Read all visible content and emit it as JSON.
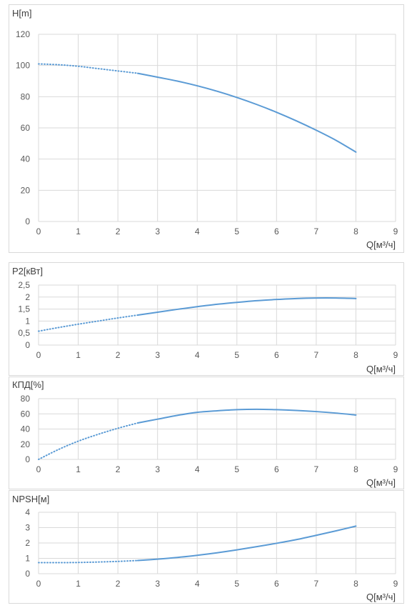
{
  "chart_data": [
    {
      "type": "line",
      "ylabel": "H[m]",
      "xlabel": "Q[м³/ч]",
      "xlim": [
        0,
        9
      ],
      "ylim": [
        0,
        120
      ],
      "xticks": [
        "0",
        "1",
        "2",
        "3",
        "4",
        "5",
        "6",
        "7",
        "8",
        "9"
      ],
      "yticks": [
        "0",
        "20",
        "40",
        "60",
        "80",
        "100",
        "120"
      ],
      "grid": true,
      "series": [
        {
          "line_style": "dotted",
          "color": "#5b9bd5",
          "x": [
            0,
            0.5,
            1,
            1.5,
            2,
            2.5
          ],
          "y": [
            101,
            100.5,
            99.5,
            98,
            96.5,
            95
          ]
        },
        {
          "line_style": "solid",
          "color": "#5b9bd5",
          "x": [
            2.5,
            3,
            3.5,
            4,
            4.5,
            5,
            5.5,
            6,
            6.5,
            7,
            7.5,
            8
          ],
          "y": [
            95,
            92.5,
            90,
            87,
            83.5,
            79.5,
            75,
            70,
            64.5,
            58.5,
            52,
            44.5
          ]
        }
      ]
    },
    {
      "type": "line",
      "ylabel": "P2[кВт]",
      "xlabel": "Q[м³/ч]",
      "xlim": [
        0,
        9
      ],
      "ylim": [
        0,
        2.5
      ],
      "xticks": [
        "0",
        "1",
        "2",
        "3",
        "4",
        "5",
        "6",
        "7",
        "8",
        "9"
      ],
      "yticks": [
        "0",
        "0,5",
        "1",
        "1,5",
        "2",
        "2,5"
      ],
      "grid": true,
      "series": [
        {
          "line_style": "dotted",
          "color": "#5b9bd5",
          "x": [
            0,
            0.5,
            1,
            1.5,
            2,
            2.5
          ],
          "y": [
            0.58,
            0.73,
            0.87,
            1.0,
            1.13,
            1.25
          ]
        },
        {
          "line_style": "solid",
          "color": "#5b9bd5",
          "x": [
            2.5,
            3,
            3.5,
            4,
            4.5,
            5,
            5.5,
            6,
            6.5,
            7,
            7.5,
            8
          ],
          "y": [
            1.25,
            1.37,
            1.49,
            1.6,
            1.7,
            1.78,
            1.85,
            1.9,
            1.94,
            1.96,
            1.96,
            1.94
          ]
        }
      ]
    },
    {
      "type": "line",
      "ylabel": "КПД[%]",
      "xlabel": "Q[м³/ч]",
      "xlim": [
        0,
        9
      ],
      "ylim": [
        0,
        80
      ],
      "xticks": [
        "0",
        "1",
        "2",
        "3",
        "4",
        "5",
        "6",
        "7",
        "8",
        "9"
      ],
      "yticks": [
        "0",
        "20",
        "40",
        "60",
        "80"
      ],
      "grid": true,
      "series": [
        {
          "line_style": "dotted",
          "color": "#5b9bd5",
          "x": [
            0,
            0.5,
            1,
            1.5,
            2,
            2.5
          ],
          "y": [
            0,
            13,
            24,
            33,
            41,
            48
          ]
        },
        {
          "line_style": "solid",
          "color": "#5b9bd5",
          "x": [
            2.5,
            3,
            3.5,
            4,
            4.5,
            5,
            5.5,
            6,
            6.5,
            7,
            7.5,
            8
          ],
          "y": [
            48,
            53,
            58,
            62,
            64,
            65.5,
            66,
            65.5,
            64.5,
            63,
            61,
            58.5
          ]
        }
      ]
    },
    {
      "type": "line",
      "ylabel": "NPSH[м]",
      "xlabel": "Q[м³/ч]",
      "xlim": [
        0,
        9
      ],
      "ylim": [
        0,
        4
      ],
      "xticks": [
        "0",
        "1",
        "2",
        "3",
        "4",
        "5",
        "6",
        "7",
        "8",
        "9"
      ],
      "yticks": [
        "0",
        "1",
        "2",
        "3",
        "4"
      ],
      "grid": true,
      "series": [
        {
          "line_style": "dotted",
          "color": "#5b9bd5",
          "x": [
            0,
            0.5,
            1,
            1.5,
            2,
            2.5
          ],
          "y": [
            0.72,
            0.72,
            0.73,
            0.76,
            0.8,
            0.86
          ]
        },
        {
          "line_style": "solid",
          "color": "#5b9bd5",
          "x": [
            2.5,
            3,
            3.5,
            4,
            4.5,
            5,
            5.5,
            6,
            6.5,
            7,
            7.5,
            8
          ],
          "y": [
            0.86,
            0.95,
            1.06,
            1.2,
            1.36,
            1.55,
            1.76,
            1.98,
            2.22,
            2.5,
            2.79,
            3.1
          ]
        }
      ]
    }
  ],
  "colors": {
    "grid": "#d9d9d9",
    "line": "#5b9bd5",
    "border": "#d9d9d9",
    "text": "#595959"
  }
}
